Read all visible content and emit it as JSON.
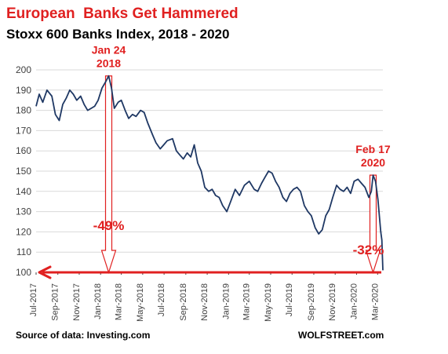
{
  "title": "European  Banks Get Hammered",
  "subtitle": "Stoxx 600 Banks Index, 2018 - 2020",
  "source": "Source of data: Investing.com",
  "brand": "WOLFSTREET.com",
  "colors": {
    "line": "#1f3864",
    "accent": "#e02020",
    "arrow_fill": "#ffffff",
    "grid": "#d9d9d9",
    "axis_text": "#404040"
  },
  "chart_data": {
    "type": "line",
    "title": "European  Banks Get Hammered",
    "subtitle": "Stoxx 600 Banks Index, 2018 - 2020",
    "xlabel": "",
    "ylabel": "",
    "ylim": [
      100,
      200
    ],
    "yticks": [
      100,
      110,
      120,
      130,
      140,
      150,
      160,
      170,
      180,
      190,
      200
    ],
    "grid": "horizontal",
    "xlim": [
      "2017-07-01",
      "2020-03-16"
    ],
    "xtick_labels": [
      "Jul-2017",
      "Sep-2017",
      "Nov-2017",
      "Jan-2018",
      "Mar-2018",
      "May-2018",
      "Jul-2018",
      "Sep-2018",
      "Nov-2018",
      "Jan-2019",
      "Mar-2019",
      "May-2019",
      "Jul-2019",
      "Sep-2019",
      "Nov-2019",
      "Jan-2020",
      "Mar-2020"
    ],
    "xtick_dates": [
      "2017-07-01",
      "2017-09-01",
      "2017-11-01",
      "2018-01-01",
      "2018-03-01",
      "2018-05-01",
      "2018-07-01",
      "2018-09-01",
      "2018-11-01",
      "2019-01-01",
      "2019-03-01",
      "2019-05-01",
      "2019-07-01",
      "2019-09-01",
      "2019-11-01",
      "2020-01-01",
      "2020-03-01"
    ],
    "series": [
      {
        "x": [
          "2017-07-01",
          "2017-07-10",
          "2017-07-20",
          "2017-08-01",
          "2017-08-15",
          "2017-08-25",
          "2017-09-05",
          "2017-09-15",
          "2017-09-25",
          "2017-10-05",
          "2017-10-15",
          "2017-10-25",
          "2017-11-05",
          "2017-11-15",
          "2017-11-25",
          "2017-12-05",
          "2017-12-15",
          "2017-12-25",
          "2018-01-05",
          "2018-01-15",
          "2018-01-24",
          "2018-02-01",
          "2018-02-09",
          "2018-02-20",
          "2018-03-01",
          "2018-03-12",
          "2018-03-22",
          "2018-04-02",
          "2018-04-12",
          "2018-04-25",
          "2018-05-05",
          "2018-05-15",
          "2018-05-29",
          "2018-06-08",
          "2018-06-20",
          "2018-06-30",
          "2018-07-10",
          "2018-07-25",
          "2018-08-05",
          "2018-08-15",
          "2018-08-25",
          "2018-09-05",
          "2018-09-15",
          "2018-09-25",
          "2018-10-05",
          "2018-10-15",
          "2018-10-25",
          "2018-11-05",
          "2018-11-15",
          "2018-11-25",
          "2018-12-05",
          "2018-12-15",
          "2018-12-27",
          "2019-01-07",
          "2019-01-20",
          "2019-02-01",
          "2019-02-15",
          "2019-03-01",
          "2019-03-15",
          "2019-03-25",
          "2019-04-05",
          "2019-04-15",
          "2019-04-25",
          "2019-05-05",
          "2019-05-15",
          "2019-05-25",
          "2019-06-05",
          "2019-06-15",
          "2019-06-25",
          "2019-07-05",
          "2019-07-15",
          "2019-07-25",
          "2019-08-05",
          "2019-08-15",
          "2019-08-25",
          "2019-09-05",
          "2019-09-15",
          "2019-09-25",
          "2019-10-05",
          "2019-10-15",
          "2019-10-25",
          "2019-11-05",
          "2019-11-15",
          "2019-11-25",
          "2019-12-05",
          "2019-12-15",
          "2019-12-25",
          "2020-01-05",
          "2020-01-15",
          "2020-01-25",
          "2020-02-05",
          "2020-02-12",
          "2020-02-17",
          "2020-02-24",
          "2020-03-02",
          "2020-03-06",
          "2020-03-10",
          "2020-03-13",
          "2020-03-16"
        ],
        "values": [
          182,
          188,
          184,
          190,
          187,
          178,
          175,
          183,
          186,
          190,
          188,
          185,
          187,
          183,
          180,
          181,
          182,
          185,
          191,
          194,
          197,
          191,
          181,
          184,
          185,
          180,
          176,
          178,
          177,
          180,
          179,
          174,
          168,
          164,
          161,
          163,
          165,
          166,
          160,
          158,
          156,
          159,
          157,
          163,
          154,
          150,
          142,
          140,
          141,
          138,
          137,
          133,
          130,
          135,
          141,
          138,
          143,
          145,
          141,
          140,
          144,
          147,
          150,
          149,
          145,
          142,
          137,
          135,
          139,
          141,
          142,
          140,
          133,
          130,
          128,
          122,
          119,
          121,
          128,
          131,
          137,
          143,
          141,
          140,
          142,
          139,
          145,
          146,
          144,
          142,
          137,
          140,
          148,
          145,
          136,
          128,
          120,
          116,
          101
        ]
      }
    ],
    "annotations": [
      {
        "label_line1": "Jan 24",
        "label_line2": "2018",
        "date": "2018-01-24",
        "from": 197,
        "to": 100,
        "change": "-49%"
      },
      {
        "label_line1": "Feb 17",
        "label_line2": "2020",
        "date": "2020-02-17",
        "from": 148,
        "to": 100,
        "change": "-32%"
      }
    ],
    "baseline": {
      "value": 100,
      "arrow": "left"
    }
  }
}
